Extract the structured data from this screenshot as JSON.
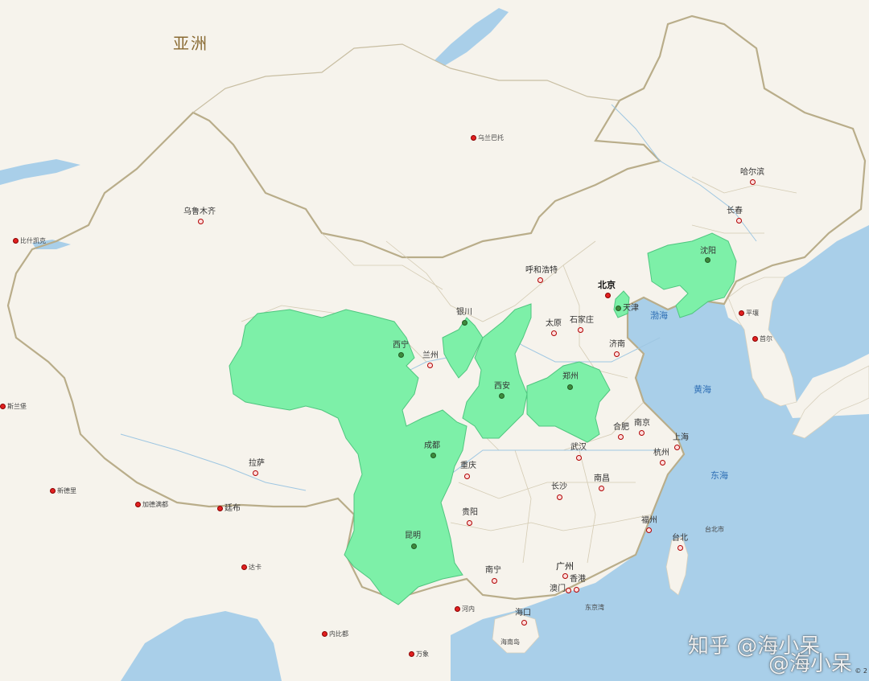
{
  "map": {
    "continent_label": "亚洲",
    "highlight_color": "#7df0a8",
    "water_color": "#a9cfe9",
    "land_color": "#f6f3ec",
    "border_color": "#b9ad8a",
    "cities": [
      {
        "key": "ulaanbaatar",
        "label": "乌兰巴托",
        "type": "capital",
        "size": "small"
      },
      {
        "key": "urumqi",
        "label": "乌鲁木齐",
        "type": "city",
        "size": "normal"
      },
      {
        "key": "bishkek",
        "label": "比什凯克",
        "type": "capital",
        "size": "small"
      },
      {
        "key": "harbin",
        "label": "哈尔滨",
        "type": "city",
        "size": "normal"
      },
      {
        "key": "changchun",
        "label": "长春",
        "type": "city",
        "size": "normal"
      },
      {
        "key": "shenyang",
        "label": "沈阳",
        "type": "city-green",
        "size": "normal"
      },
      {
        "key": "hohhot",
        "label": "呼和浩特",
        "type": "city",
        "size": "normal"
      },
      {
        "key": "beijing",
        "label": "北京",
        "type": "capital",
        "size": "bold"
      },
      {
        "key": "tianjin",
        "label": "天津",
        "type": "city-green",
        "size": "normal"
      },
      {
        "key": "pyongyang",
        "label": "平壤",
        "type": "capital",
        "size": "small"
      },
      {
        "key": "seoul",
        "label": "首尔",
        "type": "capital",
        "size": "small"
      },
      {
        "key": "yinchuan",
        "label": "银川",
        "type": "city-green",
        "size": "normal"
      },
      {
        "key": "taiyuan",
        "label": "太原",
        "type": "city",
        "size": "normal"
      },
      {
        "key": "shijiazhuang",
        "label": "石家庄",
        "type": "city",
        "size": "normal"
      },
      {
        "key": "xining",
        "label": "西宁",
        "type": "city-green",
        "size": "normal"
      },
      {
        "key": "lanzhou",
        "label": "兰州",
        "type": "city",
        "size": "normal"
      },
      {
        "key": "jinan",
        "label": "济南",
        "type": "city",
        "size": "normal"
      },
      {
        "key": "zhengzhou",
        "label": "郑州",
        "type": "city-green",
        "size": "normal"
      },
      {
        "key": "xian",
        "label": "西安",
        "type": "city-green",
        "size": "normal"
      },
      {
        "key": "hefei",
        "label": "合肥",
        "type": "city",
        "size": "normal"
      },
      {
        "key": "nanjing",
        "label": "南京",
        "type": "city",
        "size": "normal"
      },
      {
        "key": "shanghai",
        "label": "上海",
        "type": "city",
        "size": "normal"
      },
      {
        "key": "chengdu",
        "label": "成都",
        "type": "city-green",
        "size": "normal"
      },
      {
        "key": "wuhan",
        "label": "武汉",
        "type": "city",
        "size": "normal"
      },
      {
        "key": "hangzhou",
        "label": "杭州",
        "type": "city",
        "size": "normal"
      },
      {
        "key": "lhasa",
        "label": "拉萨",
        "type": "city",
        "size": "normal"
      },
      {
        "key": "chongqing",
        "label": "重庆",
        "type": "city",
        "size": "normal"
      },
      {
        "key": "changsha",
        "label": "长沙",
        "type": "city",
        "size": "normal"
      },
      {
        "key": "nanchang",
        "label": "南昌",
        "type": "city",
        "size": "normal"
      },
      {
        "key": "guiyang",
        "label": "贵阳",
        "type": "city",
        "size": "normal"
      },
      {
        "key": "fuzhou",
        "label": "福州",
        "type": "city",
        "size": "normal"
      },
      {
        "key": "taibei",
        "label": "台北",
        "type": "city",
        "size": "normal"
      },
      {
        "key": "kunming",
        "label": "昆明",
        "type": "city-green",
        "size": "normal"
      },
      {
        "key": "nanning",
        "label": "南宁",
        "type": "city",
        "size": "normal"
      },
      {
        "key": "guangzhou",
        "label": "广州",
        "type": "city",
        "size": "normal"
      },
      {
        "key": "hongkong",
        "label": "香港",
        "type": "city",
        "size": "normal"
      },
      {
        "key": "macau",
        "label": "澳门",
        "type": "city",
        "size": "normal"
      },
      {
        "key": "haikou",
        "label": "海口",
        "type": "city",
        "size": "normal"
      },
      {
        "key": "thimphu",
        "label": "廷布",
        "type": "capital",
        "size": "normal"
      },
      {
        "key": "kathmandu",
        "label": "加德满都",
        "type": "capital",
        "size": "small"
      },
      {
        "key": "dhaka",
        "label": "达卡",
        "type": "capital",
        "size": "small"
      },
      {
        "key": "naypyidaw",
        "label": "内比都",
        "type": "capital",
        "size": "small"
      },
      {
        "key": "hanoi",
        "label": "河内",
        "type": "capital",
        "size": "small"
      },
      {
        "key": "vientiane",
        "label": "万象",
        "type": "capital",
        "size": "small"
      },
      {
        "key": "new-delhi",
        "label": "新德里",
        "type": "capital",
        "size": "small"
      },
      {
        "key": "islamabad",
        "label": "斯兰堡",
        "type": "capital",
        "size": "small"
      }
    ],
    "seas": [
      {
        "key": "bohai",
        "label": "渤海"
      },
      {
        "key": "yellow-sea",
        "label": "黄海"
      },
      {
        "key": "east-sea",
        "label": "东海"
      }
    ],
    "minor_labels": [
      {
        "key": "taipei-en",
        "label": "台北市"
      },
      {
        "key": "hainan",
        "label": "海南岛"
      },
      {
        "key": "tonkin",
        "label": "东京湾"
      }
    ]
  },
  "watermarks": {
    "zhihu": "知乎 @海小呆",
    "weibo": "@海小呆"
  },
  "copyright": "© 2"
}
